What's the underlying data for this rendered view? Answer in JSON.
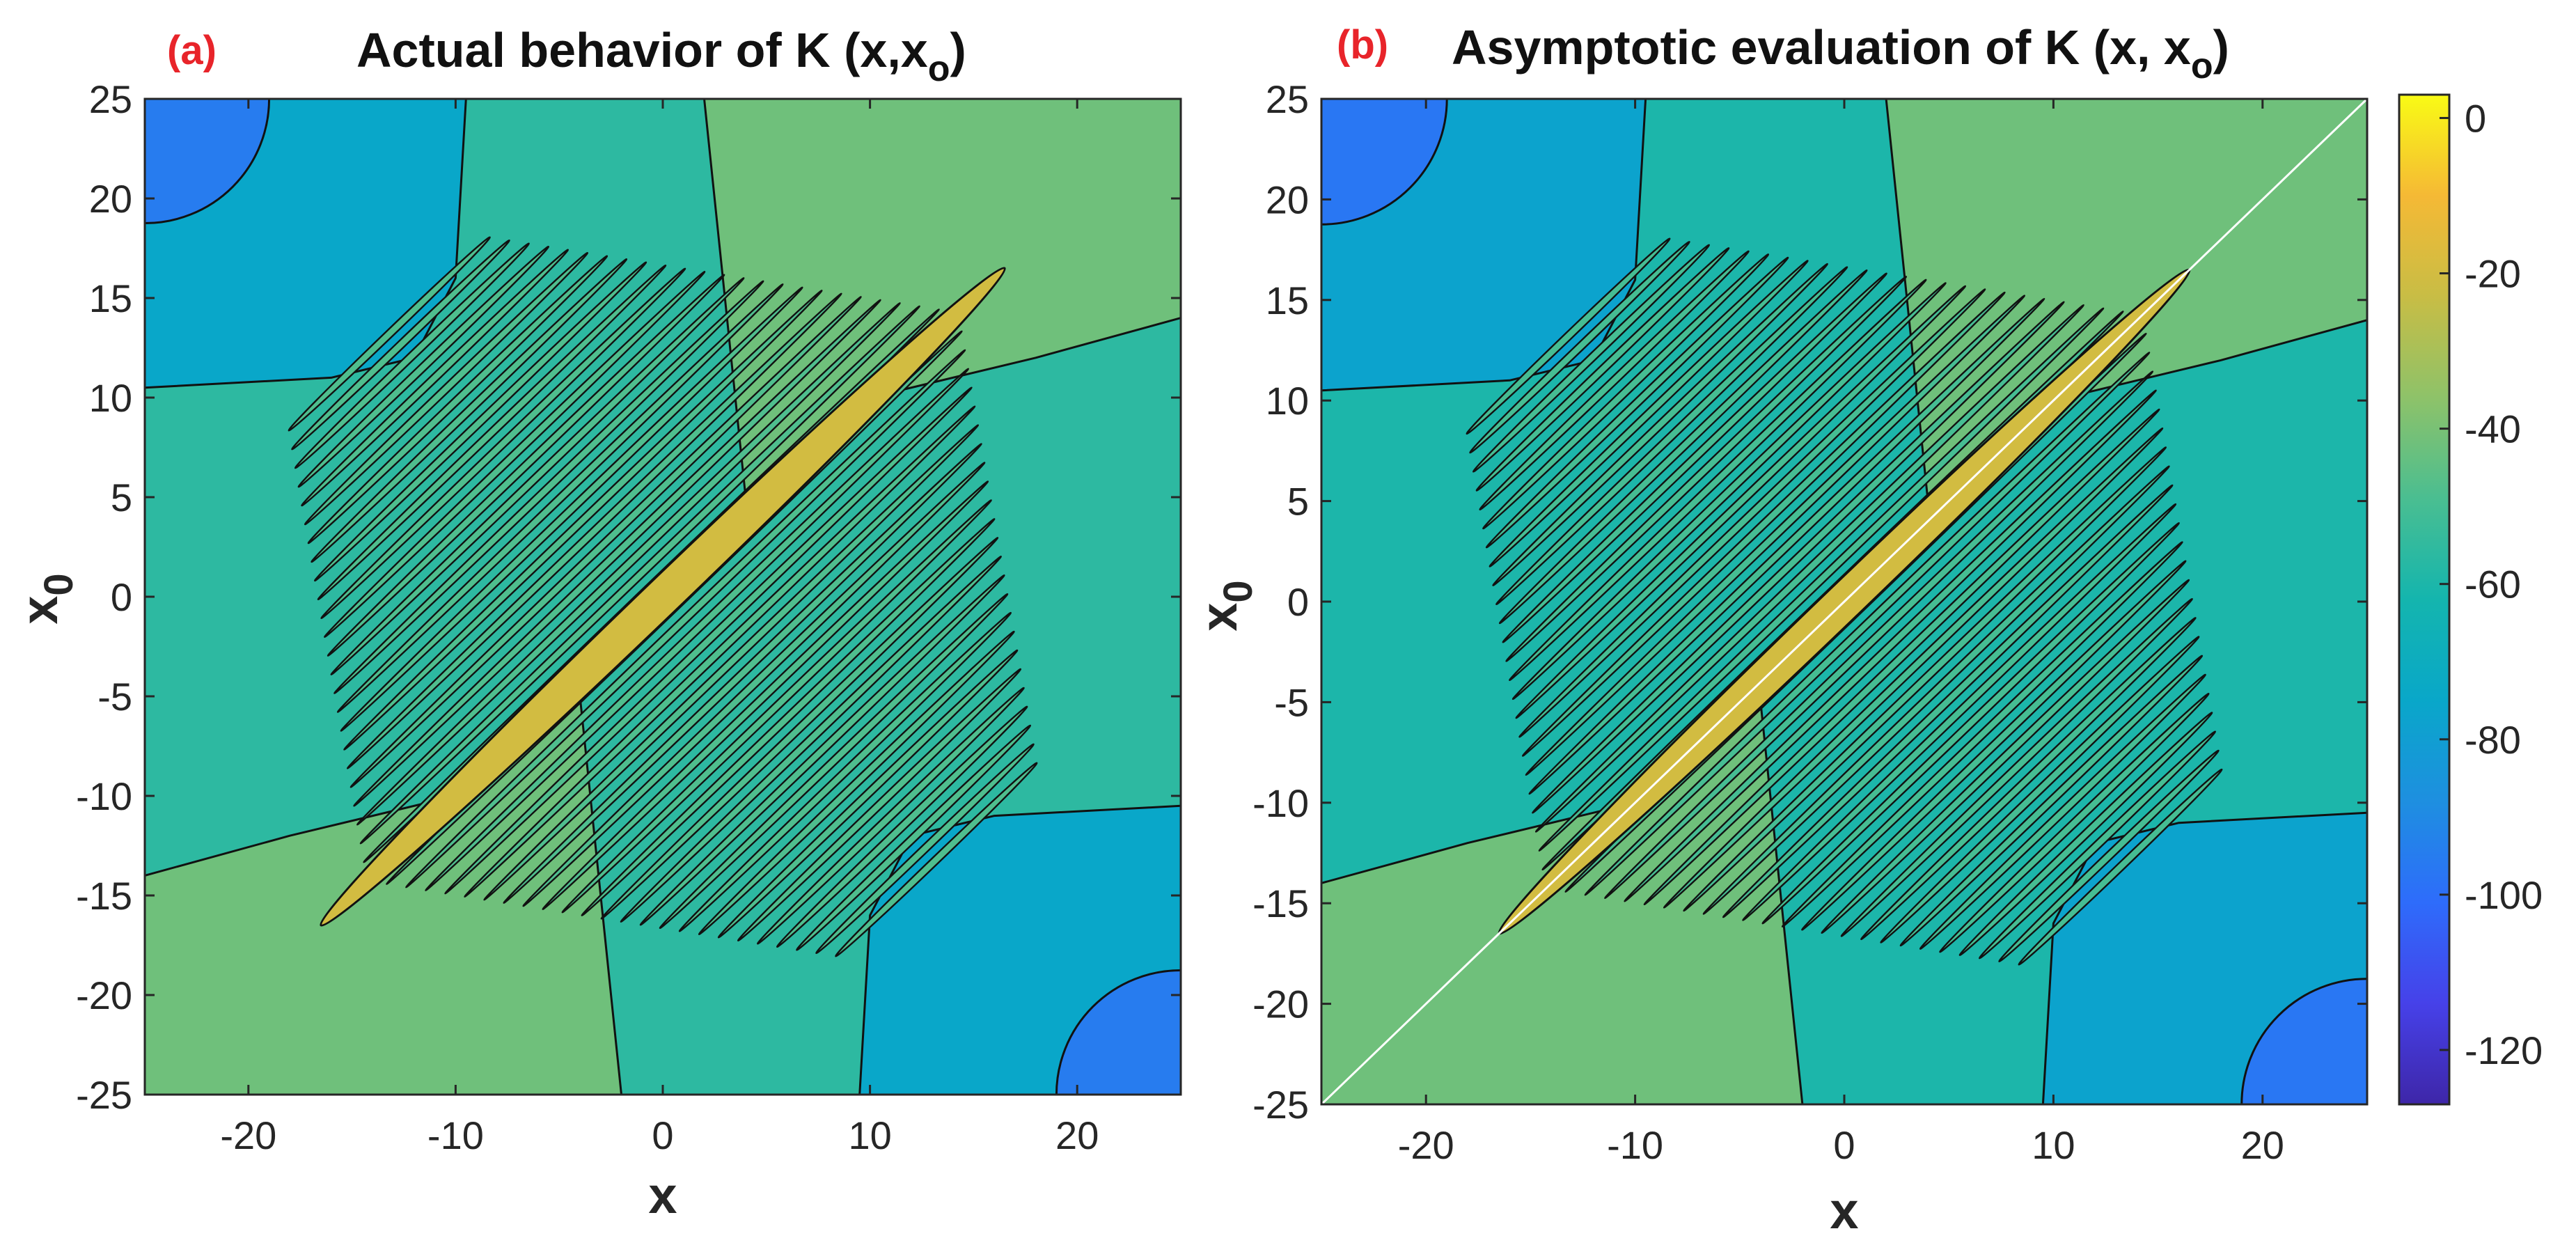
{
  "chart_data": [
    {
      "type": "heatmap",
      "panel_label": "(a)",
      "title": "Actual behavior of K (x,x",
      "title_sub": "o",
      "title_close": ")",
      "xlabel": "x",
      "ylabel": "x",
      "ylabel_sub": "0",
      "xlim": [
        -25,
        25
      ],
      "ylim": [
        -25,
        25
      ],
      "xticks": [
        -20,
        -10,
        0,
        10,
        20
      ],
      "yticks": [
        25,
        20,
        15,
        10,
        5,
        0,
        -5,
        -10,
        -15,
        -20,
        -25
      ],
      "xtick_labels": [
        "-20",
        "-10",
        "0",
        "10",
        "20"
      ],
      "ytick_labels": [
        "25",
        "20",
        "15",
        "10",
        "5",
        "0",
        "-5",
        "-10",
        "-15",
        "-20",
        "-25"
      ],
      "diagonal_line": false,
      "levels": {
        "background": -56,
        "corner_dark": -75,
        "corner_deep": -95,
        "flank": -42,
        "ridge": -20,
        "fringe": -48
      }
    },
    {
      "type": "heatmap",
      "panel_label": "(b)",
      "title": "Asymptotic evaluation of K (x, x",
      "title_sub": "o",
      "title_close": ")",
      "xlabel": "x",
      "ylabel": "x",
      "ylabel_sub": "0",
      "xlim": [
        -25,
        25
      ],
      "ylim": [
        -25,
        25
      ],
      "xticks": [
        -20,
        -10,
        0,
        10,
        20
      ],
      "yticks": [
        25,
        20,
        15,
        10,
        5,
        0,
        -5,
        -10,
        -15,
        -20,
        -25
      ],
      "xtick_labels": [
        "-20",
        "-10",
        "0",
        "10",
        "20"
      ],
      "ytick_labels": [
        "25",
        "20",
        "15",
        "10",
        "5",
        "0",
        "-5",
        "-10",
        "-15",
        "-20",
        "-25"
      ],
      "diagonal_line": true,
      "levels": {
        "background": -60,
        "corner_dark": -77,
        "corner_deep": -97,
        "flank": -42,
        "ridge": -20,
        "fringe": -50
      }
    }
  ],
  "colorbar": {
    "range": [
      -127,
      3
    ],
    "ticks": [
      0,
      -20,
      -40,
      -60,
      -80,
      -100,
      -120
    ],
    "tick_labels": [
      "0",
      "-20",
      "-40",
      "-60",
      "-80",
      "-100",
      "-120"
    ],
    "colormap": [
      "#3e26a8",
      "#4641e9",
      "#2e6cfb",
      "#1e8fe0",
      "#09a7c9",
      "#14b5ae",
      "#4abe91",
      "#8ec269",
      "#c8bd45",
      "#f5b935",
      "#f9fb15"
    ]
  }
}
